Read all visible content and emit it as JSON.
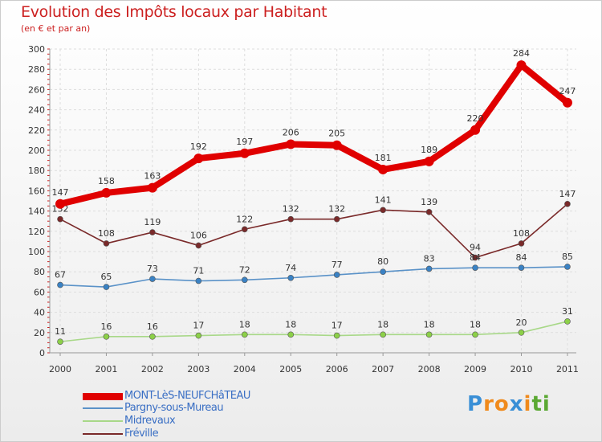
{
  "header": {
    "title": "Evolution des Impôts locaux par Habitant",
    "subtitle": "(en € et par an)"
  },
  "logo": {
    "text": "Proxiti",
    "letters": [
      {
        "ch": "P",
        "color": "#3a8fd6"
      },
      {
        "ch": "r",
        "color": "#f08a1c"
      },
      {
        "ch": "o",
        "color": "#f08a1c"
      },
      {
        "ch": "x",
        "color": "#3a8fd6"
      },
      {
        "ch": "i",
        "color": "#f08a1c"
      },
      {
        "ch": "t",
        "color": "#5aa832"
      },
      {
        "ch": "i",
        "color": "#5aa832"
      }
    ]
  },
  "chart_data": {
    "type": "line",
    "title": "Evolution des Impôts locaux par Habitant",
    "subtitle": "(en € et par an)",
    "xlabel": "",
    "ylabel": "",
    "categories": [
      "2000",
      "2001",
      "2002",
      "2003",
      "2004",
      "2005",
      "2006",
      "2007",
      "2008",
      "2009",
      "2010",
      "2011"
    ],
    "ylim": [
      0,
      300
    ],
    "yticks": [
      0,
      20,
      40,
      60,
      80,
      100,
      120,
      140,
      160,
      180,
      200,
      220,
      240,
      260,
      280,
      300
    ],
    "grid": true,
    "legend_position": "bottom-left",
    "series": [
      {
        "name": "MONT-LèS-NEUFCHâTEAU",
        "color": "#e00000",
        "dot": "#e00000",
        "width": "thick",
        "values": [
          147,
          158,
          163,
          192,
          197,
          206,
          205,
          181,
          189,
          220,
          284,
          247
        ]
      },
      {
        "name": "Pargny-sous-Mureau",
        "color": "#5a92c8",
        "dot": "#3a82c4",
        "width": "thin",
        "values": [
          67,
          65,
          73,
          71,
          72,
          74,
          77,
          80,
          83,
          84,
          84,
          85
        ]
      },
      {
        "name": "Midrevaux",
        "color": "#a8d888",
        "dot": "#8cd048",
        "width": "thin",
        "values": [
          11,
          16,
          16,
          17,
          18,
          18,
          17,
          18,
          18,
          18,
          20,
          31
        ]
      },
      {
        "name": "Fréville",
        "color": "#7a2a2a",
        "dot": "#7a2a2a",
        "width": "thin",
        "values": [
          132,
          108,
          119,
          106,
          122,
          132,
          132,
          141,
          139,
          94,
          108,
          147
        ]
      }
    ]
  }
}
